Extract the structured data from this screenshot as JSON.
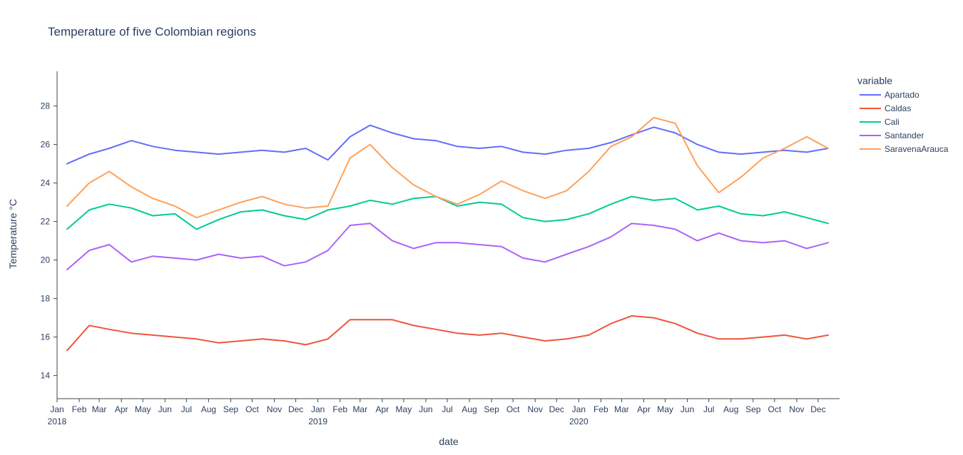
{
  "chart_data": {
    "type": "line",
    "title": "Temperature of five Colombian regions",
    "xlabel": "date",
    "ylabel": "Temperature  °C",
    "legend_title": "variable",
    "legend_position": "right",
    "grid": false,
    "x_range": [
      "2018-01-01",
      "2020-12-31"
    ],
    "y_range": [
      12.8,
      29.8
    ],
    "y_ticks": [
      14,
      16,
      18,
      20,
      22,
      24,
      26,
      28
    ],
    "x_month_ticks": [
      "Jan",
      "Feb",
      "Mar",
      "Apr",
      "May",
      "Jun",
      "Jul",
      "Aug",
      "Sep",
      "Oct",
      "Nov",
      "Dec"
    ],
    "x_year_ticks": [
      "2018",
      "2019",
      "2020"
    ],
    "series": [
      {
        "name": "Apartado",
        "color": "#636efa",
        "x": [
          "2018-01-15",
          "2018-02-15",
          "2018-03-15",
          "2018-04-15",
          "2018-05-15",
          "2018-06-15",
          "2018-07-15",
          "2018-08-15",
          "2018-09-15",
          "2018-10-15",
          "2018-11-15",
          "2018-12-15",
          "2019-01-15",
          "2019-02-15",
          "2019-03-15",
          "2019-04-15",
          "2019-05-15",
          "2019-06-15",
          "2019-07-15",
          "2019-08-15",
          "2019-09-15",
          "2019-10-15",
          "2019-11-15",
          "2019-12-15",
          "2020-01-15",
          "2020-02-15",
          "2020-03-15",
          "2020-04-15",
          "2020-05-15",
          "2020-06-15",
          "2020-07-15",
          "2020-08-15",
          "2020-09-15",
          "2020-10-15",
          "2020-11-15",
          "2020-12-15"
        ],
        "y": [
          25.0,
          25.5,
          25.8,
          26.2,
          25.9,
          25.7,
          25.6,
          25.5,
          25.6,
          25.7,
          25.6,
          25.8,
          25.2,
          26.4,
          27.0,
          26.6,
          26.3,
          26.2,
          25.9,
          25.8,
          25.9,
          25.6,
          25.5,
          25.7,
          25.8,
          26.1,
          26.5,
          26.9,
          26.6,
          26.0,
          25.6,
          25.5,
          25.6,
          25.7,
          25.6,
          25.8
        ]
      },
      {
        "name": "Caldas",
        "color": "#ef553b",
        "x": [
          "2018-01-15",
          "2018-02-15",
          "2018-03-15",
          "2018-04-15",
          "2018-05-15",
          "2018-06-15",
          "2018-07-15",
          "2018-08-15",
          "2018-09-15",
          "2018-10-15",
          "2018-11-15",
          "2018-12-15",
          "2019-01-15",
          "2019-02-15",
          "2019-03-15",
          "2019-04-15",
          "2019-05-15",
          "2019-06-15",
          "2019-07-15",
          "2019-08-15",
          "2019-09-15",
          "2019-10-15",
          "2019-11-15",
          "2019-12-15",
          "2020-01-15",
          "2020-02-15",
          "2020-03-15",
          "2020-04-15",
          "2020-05-15",
          "2020-06-15",
          "2020-07-15",
          "2020-08-15",
          "2020-09-15",
          "2020-10-15",
          "2020-11-15",
          "2020-12-15"
        ],
        "y": [
          15.3,
          16.6,
          16.4,
          16.2,
          16.1,
          16.0,
          15.9,
          15.7,
          15.8,
          15.9,
          15.8,
          15.6,
          15.9,
          16.9,
          16.9,
          16.9,
          16.6,
          16.4,
          16.2,
          16.1,
          16.2,
          16.0,
          15.8,
          15.9,
          16.1,
          16.7,
          17.1,
          17.0,
          16.7,
          16.2,
          15.9,
          15.9,
          16.0,
          16.1,
          15.9,
          16.1
        ]
      },
      {
        "name": "Cali",
        "color": "#00cc96",
        "x": [
          "2018-01-15",
          "2018-02-15",
          "2018-03-15",
          "2018-04-15",
          "2018-05-15",
          "2018-06-15",
          "2018-07-15",
          "2018-08-15",
          "2018-09-15",
          "2018-10-15",
          "2018-11-15",
          "2018-12-15",
          "2019-01-15",
          "2019-02-15",
          "2019-03-15",
          "2019-04-15",
          "2019-05-15",
          "2019-06-15",
          "2019-07-15",
          "2019-08-15",
          "2019-09-15",
          "2019-10-15",
          "2019-11-15",
          "2019-12-15",
          "2020-01-15",
          "2020-02-15",
          "2020-03-15",
          "2020-04-15",
          "2020-05-15",
          "2020-06-15",
          "2020-07-15",
          "2020-08-15",
          "2020-09-15",
          "2020-10-15",
          "2020-11-15",
          "2020-12-15"
        ],
        "y": [
          21.6,
          22.6,
          22.9,
          22.7,
          22.3,
          22.4,
          21.6,
          22.1,
          22.5,
          22.6,
          22.3,
          22.1,
          22.6,
          22.8,
          23.1,
          22.9,
          23.2,
          23.3,
          22.8,
          23.0,
          22.9,
          22.2,
          22.0,
          22.1,
          22.4,
          22.9,
          23.3,
          23.1,
          23.2,
          22.6,
          22.8,
          22.4,
          22.3,
          22.5,
          22.2,
          21.9
        ]
      },
      {
        "name": "Santander",
        "color": "#ab63fa",
        "x": [
          "2018-01-15",
          "2018-02-15",
          "2018-03-15",
          "2018-04-15",
          "2018-05-15",
          "2018-06-15",
          "2018-07-15",
          "2018-08-15",
          "2018-09-15",
          "2018-10-15",
          "2018-11-15",
          "2018-12-15",
          "2019-01-15",
          "2019-02-15",
          "2019-03-15",
          "2019-04-15",
          "2019-05-15",
          "2019-06-15",
          "2019-07-15",
          "2019-08-15",
          "2019-09-15",
          "2019-10-15",
          "2019-11-15",
          "2019-12-15",
          "2020-01-15",
          "2020-02-15",
          "2020-03-15",
          "2020-04-15",
          "2020-05-15",
          "2020-06-15",
          "2020-07-15",
          "2020-08-15",
          "2020-09-15",
          "2020-10-15",
          "2020-11-15",
          "2020-12-15"
        ],
        "y": [
          19.5,
          20.5,
          20.8,
          19.9,
          20.2,
          20.1,
          20.0,
          20.3,
          20.1,
          20.2,
          19.7,
          19.9,
          20.5,
          21.8,
          21.9,
          21.0,
          20.6,
          20.9,
          20.9,
          20.8,
          20.7,
          20.1,
          19.9,
          20.3,
          20.7,
          21.2,
          21.9,
          21.8,
          21.6,
          21.0,
          21.4,
          21.0,
          20.9,
          21.0,
          20.6,
          20.9
        ]
      },
      {
        "name": "SaravenaArauca",
        "color": "#ffa15a",
        "x": [
          "2018-01-15",
          "2018-02-15",
          "2018-03-15",
          "2018-04-15",
          "2018-05-15",
          "2018-06-15",
          "2018-07-15",
          "2018-08-15",
          "2018-09-15",
          "2018-10-15",
          "2018-11-15",
          "2018-12-15",
          "2019-01-15",
          "2019-02-15",
          "2019-03-15",
          "2019-04-15",
          "2019-05-15",
          "2019-06-15",
          "2019-07-15",
          "2019-08-15",
          "2019-09-15",
          "2019-10-15",
          "2019-11-15",
          "2019-12-15",
          "2020-01-15",
          "2020-02-15",
          "2020-03-15",
          "2020-04-15",
          "2020-05-15",
          "2020-06-15",
          "2020-07-15",
          "2020-08-15",
          "2020-09-15",
          "2020-10-15",
          "2020-11-15",
          "2020-12-15"
        ],
        "y": [
          22.8,
          24.0,
          24.6,
          23.8,
          23.2,
          22.8,
          22.2,
          22.6,
          23.0,
          23.3,
          22.9,
          22.7,
          22.8,
          25.3,
          26.0,
          24.8,
          23.9,
          23.3,
          22.9,
          23.4,
          24.1,
          23.6,
          23.2,
          23.6,
          24.6,
          25.9,
          26.4,
          27.4,
          27.1,
          24.9,
          23.5,
          24.3,
          25.3,
          25.8,
          26.4,
          25.8
        ]
      }
    ]
  }
}
